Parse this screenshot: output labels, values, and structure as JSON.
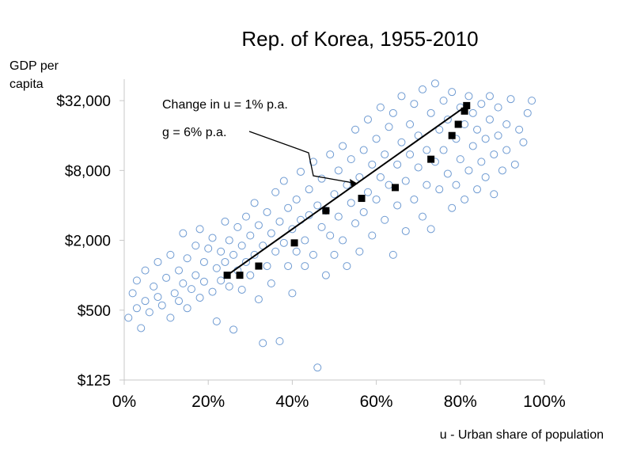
{
  "chart_data": {
    "type": "scatter",
    "title": "Rep. of Korea, 1955-2010",
    "ylabel_line1": "GDP per",
    "ylabel_line2": "capita",
    "xlabel": "u - Urban share of population",
    "y_scale": "log",
    "xlim": [
      0,
      100
    ],
    "ylim": [
      125,
      49000
    ],
    "x_ticks": [
      0,
      20,
      40,
      60,
      80,
      100
    ],
    "x_tick_labels": [
      "0%",
      "20%",
      "40%",
      "60%",
      "80%",
      "100%"
    ],
    "y_ticks": [
      125,
      500,
      2000,
      8000,
      32000
    ],
    "y_tick_labels": [
      "$125",
      "$500",
      "$2,000",
      "$8,000",
      "$32,000"
    ],
    "grid": false,
    "legend": "none",
    "annotations": [
      {
        "text": "Change in u = 1% p.a."
      },
      {
        "text": "g = 6% p.a."
      }
    ],
    "series": [
      {
        "style": "open-circle",
        "color": "#6f9bd2",
        "points": [
          [
            1,
            430
          ],
          [
            2,
            700
          ],
          [
            3,
            520
          ],
          [
            3,
            900
          ],
          [
            4,
            350
          ],
          [
            5,
            600
          ],
          [
            5,
            1100
          ],
          [
            6,
            480
          ],
          [
            7,
            800
          ],
          [
            8,
            650
          ],
          [
            8,
            1300
          ],
          [
            9,
            550
          ],
          [
            10,
            950
          ],
          [
            11,
            430
          ],
          [
            11,
            1500
          ],
          [
            12,
            700
          ],
          [
            13,
            600
          ],
          [
            13,
            1100
          ],
          [
            14,
            2300
          ],
          [
            14,
            850
          ],
          [
            15,
            520
          ],
          [
            15,
            1400
          ],
          [
            16,
            760
          ],
          [
            17,
            1000
          ],
          [
            17,
            1800
          ],
          [
            18,
            640
          ],
          [
            18,
            2500
          ],
          [
            19,
            880
          ],
          [
            19,
            1300
          ],
          [
            20,
            1700
          ],
          [
            21,
            720
          ],
          [
            21,
            2100
          ],
          [
            22,
            1150
          ],
          [
            22,
            400
          ],
          [
            23,
            1600
          ],
          [
            23,
            900
          ],
          [
            24,
            2900
          ],
          [
            24,
            1300
          ],
          [
            25,
            800
          ],
          [
            25,
            2000
          ],
          [
            26,
            340
          ],
          [
            26,
            1500
          ],
          [
            27,
            2600
          ],
          [
            27,
            1100
          ],
          [
            28,
            750
          ],
          [
            28,
            1800
          ],
          [
            29,
            3200
          ],
          [
            29,
            1300
          ],
          [
            30,
            1000
          ],
          [
            30,
            2200
          ],
          [
            31,
            4200
          ],
          [
            31,
            1500
          ],
          [
            32,
            620
          ],
          [
            32,
            2700
          ],
          [
            33,
            1800
          ],
          [
            33,
            260
          ],
          [
            34,
            3500
          ],
          [
            34,
            1200
          ],
          [
            35,
            2300
          ],
          [
            35,
            850
          ],
          [
            36,
            5200
          ],
          [
            36,
            1600
          ],
          [
            37,
            270
          ],
          [
            37,
            2900
          ],
          [
            38,
            1900
          ],
          [
            38,
            6500
          ],
          [
            39,
            1200
          ],
          [
            39,
            3800
          ],
          [
            40,
            2500
          ],
          [
            40,
            700
          ],
          [
            41,
            4500
          ],
          [
            41,
            1600
          ],
          [
            42,
            3000
          ],
          [
            42,
            7800
          ],
          [
            43,
            2000
          ],
          [
            43,
            1200
          ],
          [
            44,
            5500
          ],
          [
            44,
            3300
          ],
          [
            45,
            9500
          ],
          [
            45,
            1500
          ],
          [
            46,
            160
          ],
          [
            46,
            4000
          ],
          [
            47,
            2600
          ],
          [
            47,
            6800
          ],
          [
            48,
            1000
          ],
          [
            48,
            3600
          ],
          [
            49,
            11000
          ],
          [
            49,
            2200
          ],
          [
            50,
            5000
          ],
          [
            50,
            1500
          ],
          [
            51,
            8000
          ],
          [
            51,
            3200
          ],
          [
            52,
            2000
          ],
          [
            52,
            13000
          ],
          [
            53,
            6000
          ],
          [
            53,
            1200
          ],
          [
            54,
            4200
          ],
          [
            54,
            10000
          ],
          [
            55,
            2800
          ],
          [
            55,
            18000
          ],
          [
            56,
            7000
          ],
          [
            56,
            1600
          ],
          [
            57,
            12000
          ],
          [
            57,
            3500
          ],
          [
            58,
            5200
          ],
          [
            58,
            22000
          ],
          [
            59,
            9000
          ],
          [
            59,
            2200
          ],
          [
            60,
            15000
          ],
          [
            60,
            4500
          ],
          [
            61,
            7000
          ],
          [
            61,
            28000
          ],
          [
            62,
            3000
          ],
          [
            62,
            11000
          ],
          [
            63,
            19000
          ],
          [
            63,
            6000
          ],
          [
            64,
            1500
          ],
          [
            64,
            25000
          ],
          [
            65,
            9000
          ],
          [
            65,
            4000
          ],
          [
            66,
            14000
          ],
          [
            66,
            35000
          ],
          [
            67,
            6500
          ],
          [
            67,
            2400
          ],
          [
            68,
            20000
          ],
          [
            68,
            11000
          ],
          [
            69,
            4500
          ],
          [
            69,
            30000
          ],
          [
            70,
            8500
          ],
          [
            70,
            16000
          ],
          [
            71,
            3200
          ],
          [
            71,
            40000
          ],
          [
            72,
            12000
          ],
          [
            72,
            6000
          ],
          [
            73,
            25000
          ],
          [
            73,
            2500
          ],
          [
            74,
            9500
          ],
          [
            74,
            45000
          ],
          [
            75,
            18000
          ],
          [
            75,
            5500
          ],
          [
            76,
            32000
          ],
          [
            76,
            12000
          ],
          [
            77,
            7500
          ],
          [
            77,
            22000
          ],
          [
            78,
            3800
          ],
          [
            78,
            38000
          ],
          [
            79,
            15000
          ],
          [
            79,
            6000
          ],
          [
            80,
            28000
          ],
          [
            80,
            10000
          ],
          [
            81,
            4500
          ],
          [
            81,
            20000
          ],
          [
            82,
            35000
          ],
          [
            82,
            8000
          ],
          [
            83,
            13000
          ],
          [
            83,
            25000
          ],
          [
            84,
            5500
          ],
          [
            84,
            18000
          ],
          [
            85,
            30000
          ],
          [
            85,
            9500
          ],
          [
            86,
            15000
          ],
          [
            86,
            7000
          ],
          [
            87,
            22000
          ],
          [
            87,
            35000
          ],
          [
            88,
            11000
          ],
          [
            88,
            5000
          ],
          [
            89,
            28000
          ],
          [
            89,
            16000
          ],
          [
            90,
            8000
          ],
          [
            91,
            20000
          ],
          [
            91,
            12000
          ],
          [
            92,
            33000
          ],
          [
            93,
            9000
          ],
          [
            94,
            18000
          ],
          [
            95,
            14000
          ],
          [
            96,
            25000
          ],
          [
            97,
            32000
          ]
        ]
      },
      {
        "style": "filled-square",
        "color": "#000000",
        "points": [
          [
            24.5,
            1000
          ],
          [
            27.5,
            1000
          ],
          [
            32,
            1200
          ],
          [
            40.5,
            1900
          ],
          [
            48,
            3600
          ],
          [
            56.5,
            4600
          ],
          [
            64.5,
            5700
          ],
          [
            73,
            10000
          ],
          [
            78,
            16000
          ],
          [
            79.5,
            20000
          ],
          [
            81,
            26000
          ],
          [
            81.5,
            29000
          ]
        ]
      }
    ],
    "trend_line": {
      "x": [
        24.5,
        81.5
      ],
      "y": [
        1000,
        29000
      ]
    }
  }
}
